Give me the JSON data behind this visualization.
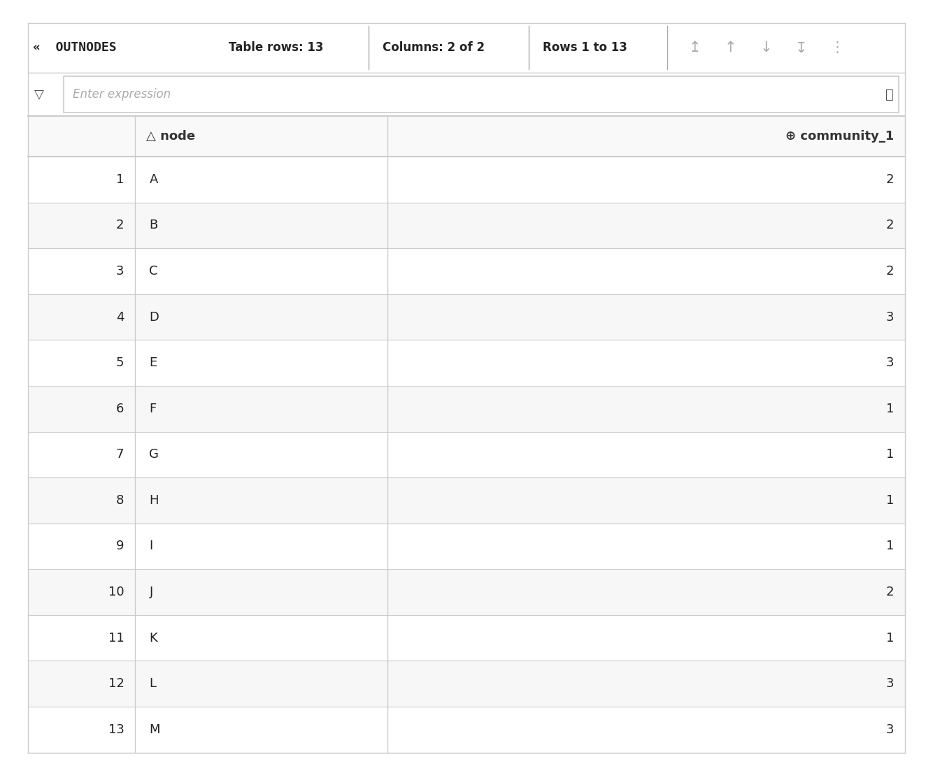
{
  "title_text": "«  OUTNODES",
  "table_rows_label": "Table rows: 13",
  "columns_label": "Columns: 2 of 2",
  "rows_label": "Rows 1 to 13",
  "filter_placeholder": "Enter expression",
  "node_header": "node",
  "community_header": "community_1",
  "node_icon": "△",
  "community_icon": "⊕",
  "funnel_icon": "▽",
  "search_icon": "⌕",
  "arrow_icons": [
    "↥",
    "↑",
    "↓",
    "↧",
    "⋮"
  ],
  "rows": [
    [
      1,
      "A",
      2
    ],
    [
      2,
      "B",
      2
    ],
    [
      3,
      "C",
      2
    ],
    [
      4,
      "D",
      3
    ],
    [
      5,
      "E",
      3
    ],
    [
      6,
      "F",
      1
    ],
    [
      7,
      "G",
      1
    ],
    [
      8,
      "H",
      1
    ],
    [
      9,
      "I",
      1
    ],
    [
      10,
      "J",
      2
    ],
    [
      11,
      "K",
      1
    ],
    [
      12,
      "L",
      3
    ],
    [
      13,
      "M",
      3
    ]
  ],
  "bg_color": "#ffffff",
  "border_color": "#cccccc",
  "text_color": "#222222",
  "header_text_color": "#333333",
  "filter_border_color": "#cccccc",
  "title_bar_bg": "#ffffff",
  "separator_color": "#aaaaaa",
  "arrow_color": "#aaaaaa",
  "funnel_color": "#555555",
  "filter_placeholder_color": "#aaaaaa",
  "font_size_title": 13,
  "font_size_header": 13,
  "font_size_cell": 13,
  "font_size_filter": 12,
  "font_size_arrow": 15,
  "font_size_icon": 13
}
